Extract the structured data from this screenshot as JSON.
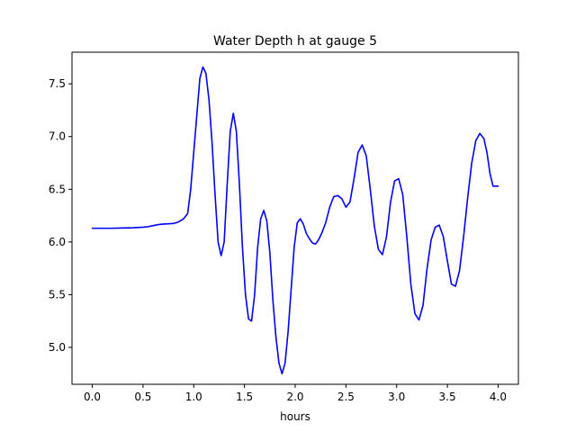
{
  "chart_data": {
    "type": "line",
    "title": "Water Depth h at gauge 5",
    "xlabel": "hours",
    "ylabel": "",
    "xlim": [
      -0.2,
      4.2
    ],
    "ylim": [
      4.65,
      7.8
    ],
    "xticks": [
      0.0,
      0.5,
      1.0,
      1.5,
      2.0,
      2.5,
      3.0,
      3.5,
      4.0
    ],
    "xtick_labels": [
      "0.0",
      "0.5",
      "1.0",
      "1.5",
      "2.0",
      "2.5",
      "3.0",
      "3.5",
      "4.0"
    ],
    "yticks": [
      5.0,
      5.5,
      6.0,
      6.5,
      7.0,
      7.5
    ],
    "ytick_labels": [
      "5.0",
      "5.5",
      "6.0",
      "6.5",
      "7.0",
      "7.5"
    ],
    "grid": false,
    "legend": "none",
    "series": [
      {
        "color": "#0000ff",
        "x": [
          0.0,
          0.1,
          0.2,
          0.3,
          0.4,
          0.5,
          0.55,
          0.6,
          0.65,
          0.7,
          0.75,
          0.8,
          0.85,
          0.9,
          0.94,
          0.97,
          1.0,
          1.03,
          1.06,
          1.09,
          1.12,
          1.15,
          1.18,
          1.21,
          1.24,
          1.27,
          1.3,
          1.33,
          1.36,
          1.39,
          1.42,
          1.45,
          1.48,
          1.51,
          1.54,
          1.57,
          1.6,
          1.63,
          1.66,
          1.69,
          1.72,
          1.75,
          1.78,
          1.81,
          1.84,
          1.87,
          1.9,
          1.93,
          1.96,
          1.99,
          2.02,
          2.05,
          2.08,
          2.11,
          2.14,
          2.17,
          2.2,
          2.23,
          2.26,
          2.3,
          2.34,
          2.38,
          2.42,
          2.46,
          2.5,
          2.54,
          2.58,
          2.62,
          2.66,
          2.7,
          2.74,
          2.78,
          2.82,
          2.86,
          2.9,
          2.94,
          2.98,
          3.02,
          3.06,
          3.1,
          3.14,
          3.18,
          3.22,
          3.26,
          3.3,
          3.34,
          3.38,
          3.42,
          3.46,
          3.5,
          3.54,
          3.58,
          3.62,
          3.66,
          3.7,
          3.74,
          3.78,
          3.82,
          3.86,
          3.89,
          3.92,
          3.95,
          3.98,
          4.0
        ],
        "y": [
          6.13,
          6.13,
          6.13,
          6.133,
          6.135,
          6.14,
          6.145,
          6.155,
          6.165,
          6.17,
          6.172,
          6.175,
          6.19,
          6.22,
          6.27,
          6.5,
          6.85,
          7.2,
          7.55,
          7.66,
          7.6,
          7.35,
          6.95,
          6.45,
          6.0,
          5.87,
          6.0,
          6.55,
          7.05,
          7.22,
          7.05,
          6.55,
          5.95,
          5.5,
          5.27,
          5.25,
          5.5,
          5.95,
          6.22,
          6.3,
          6.2,
          5.9,
          5.45,
          5.1,
          4.85,
          4.75,
          4.85,
          5.15,
          5.55,
          5.95,
          6.18,
          6.22,
          6.17,
          6.08,
          6.03,
          5.99,
          5.98,
          6.02,
          6.08,
          6.18,
          6.33,
          6.43,
          6.44,
          6.41,
          6.33,
          6.38,
          6.6,
          6.85,
          6.92,
          6.82,
          6.5,
          6.15,
          5.93,
          5.88,
          6.05,
          6.38,
          6.58,
          6.6,
          6.45,
          6.05,
          5.6,
          5.32,
          5.26,
          5.4,
          5.75,
          6.02,
          6.14,
          6.16,
          6.05,
          5.82,
          5.6,
          5.58,
          5.73,
          6.05,
          6.42,
          6.75,
          6.96,
          7.03,
          6.98,
          6.85,
          6.65,
          6.53,
          6.53,
          6.53
        ]
      }
    ]
  }
}
